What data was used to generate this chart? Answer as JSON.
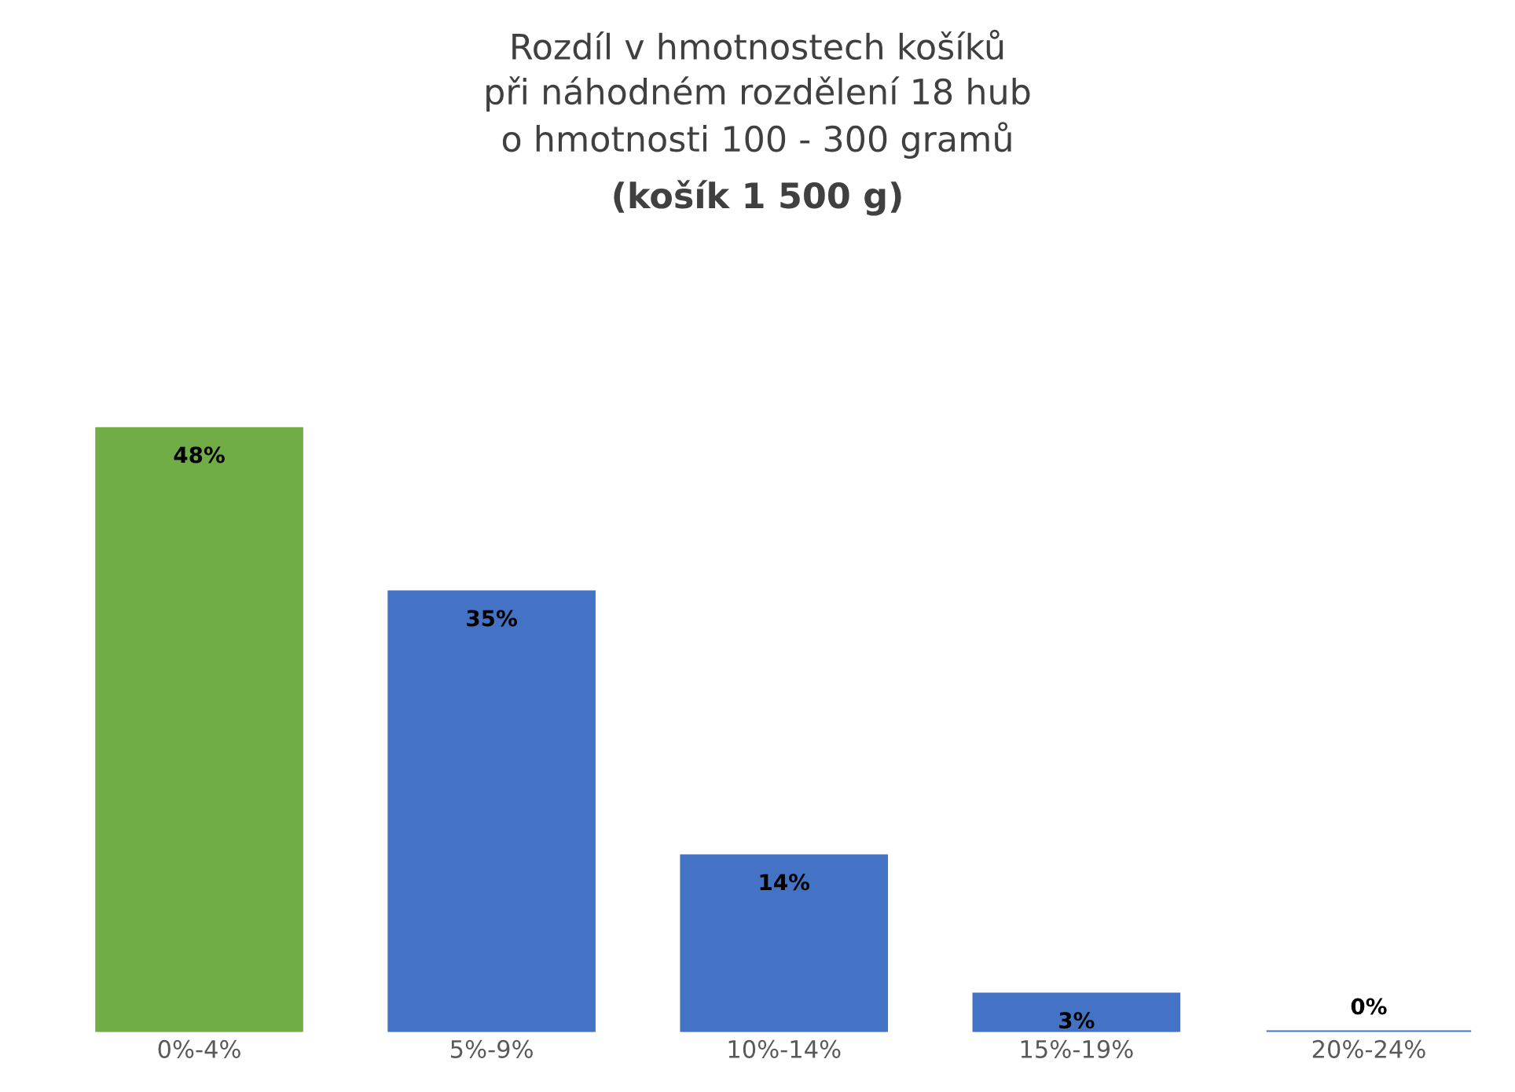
{
  "chart_data": {
    "type": "bar",
    "title": "Rozdíl v hmotnostech košíků\npři náhodném rozdělení 18 hub\no hmotnosti 100 - 300 gramů",
    "subtitle": "(košík 1 500 g)",
    "categories": [
      "0%-4%",
      "5%-9%",
      "10%-14%",
      "15%-19%",
      "20%-24%"
    ],
    "values": [
      48,
      35,
      14,
      3,
      0
    ],
    "colors": [
      "#70ad47",
      "#4472c4",
      "#4472c4",
      "#4472c4",
      "#4472c4"
    ],
    "value_labels": [
      "48%",
      "35%",
      "14%",
      "3%",
      "0%"
    ],
    "tick_labels": "x",
    "grid": false,
    "legend": false
  }
}
